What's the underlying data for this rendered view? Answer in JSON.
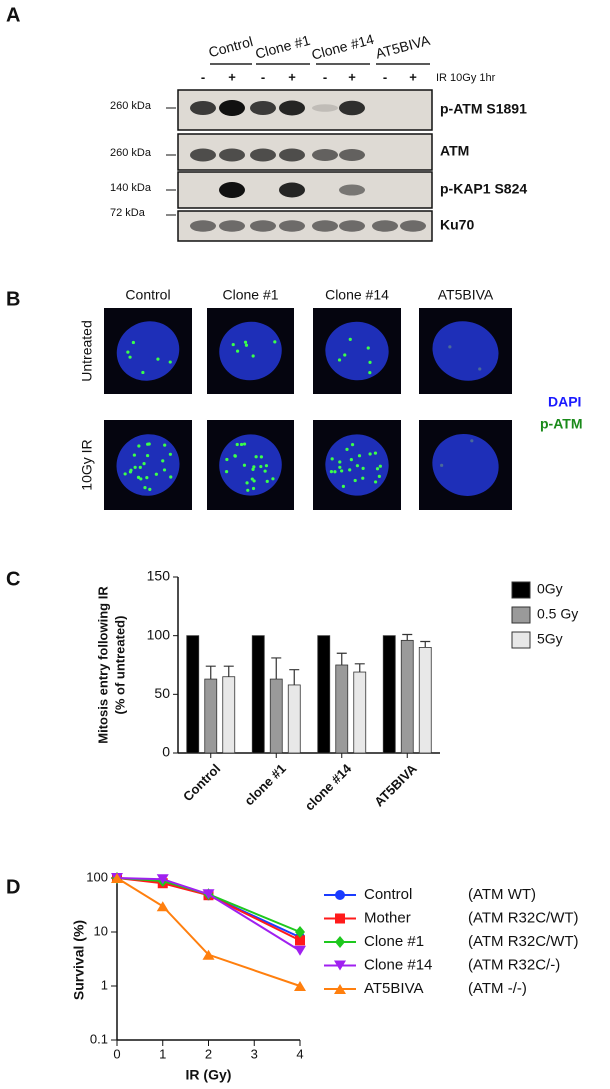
{
  "panel_labels": [
    "A",
    "B",
    "C",
    "D"
  ],
  "blot": {
    "groups": [
      "Control",
      "Clone #1",
      "Clone #14",
      "AT5BIVA"
    ],
    "treatment_signs": [
      "-",
      "+"
    ],
    "treatment": "IR 10Gy 1hr",
    "rows": [
      {
        "marker": "260 kDa",
        "protein": "p-ATM S1891"
      },
      {
        "marker": "260 kDa",
        "protein": "ATM"
      },
      {
        "marker": "140 kDa",
        "protein": "p-KAP1 S824"
      },
      {
        "marker": "72 kDa",
        "protein": "Ku70"
      }
    ]
  },
  "imaging": {
    "columns": [
      "Control",
      "Clone #1",
      "Clone #14",
      "AT5BIVA"
    ],
    "rows": [
      "Untreated",
      "10Gy IR"
    ],
    "stains": [
      "DAPI",
      "p-ATM"
    ]
  },
  "chart_data": [
    {
      "type": "bar",
      "ylabel": [
        "Mitosis entry following IR",
        "(% of untreated)"
      ],
      "categories": [
        "Control",
        "clone #1",
        "clone #14",
        "AT5BIVA"
      ],
      "series": [
        {
          "name": "0Gy",
          "color": "#000000",
          "values": [
            100,
            100,
            100,
            100
          ]
        },
        {
          "name": "0.5 Gy",
          "color": "#9a9a9a",
          "values": [
            63,
            63,
            75,
            96
          ],
          "errors": [
            11,
            18,
            10,
            5
          ]
        },
        {
          "name": "5Gy",
          "color": "#e8e8e8",
          "values": [
            65,
            58,
            69,
            90
          ],
          "errors": [
            9,
            13,
            7,
            5
          ]
        }
      ],
      "ylim": [
        0,
        150
      ],
      "yticks": [
        0,
        50,
        100,
        150
      ],
      "legend": "right"
    },
    {
      "type": "line",
      "xlabel": "IR (Gy)",
      "ylabel": "Survival (%)",
      "log_y": true,
      "x": [
        0,
        1,
        2,
        4
      ],
      "series": [
        {
          "name": "Control",
          "genotype": "(ATM WT)",
          "color": "#1a3cff",
          "marker": "circle",
          "values": [
            100,
            85,
            48,
            8
          ]
        },
        {
          "name": "Mother",
          "genotype": "(ATM R32C/WT)",
          "color": "#ff1a1a",
          "marker": "square",
          "values": [
            100,
            80,
            48,
            7
          ]
        },
        {
          "name": "Clone #1",
          "genotype": "(ATM R32C/WT)",
          "color": "#1ec81e",
          "marker": "diamond",
          "values": [
            100,
            88,
            50,
            10
          ]
        },
        {
          "name": "Clone #14",
          "genotype": "(ATM R32C/-)",
          "color": "#a020f0",
          "marker": "triangle-down",
          "values": [
            100,
            95,
            50,
            4.5
          ]
        },
        {
          "name": "AT5BIVA",
          "genotype": "(ATM -/-)",
          "color": "#ff7f0e",
          "marker": "triangle-up",
          "values": [
            100,
            30,
            3.8,
            1
          ]
        }
      ],
      "xlim": [
        0,
        4
      ],
      "xticks": [
        0,
        1,
        2,
        3,
        4
      ],
      "ylim": [
        0.1,
        100
      ],
      "yticks": [
        0.1,
        1,
        10,
        100
      ],
      "legend": "right"
    }
  ]
}
